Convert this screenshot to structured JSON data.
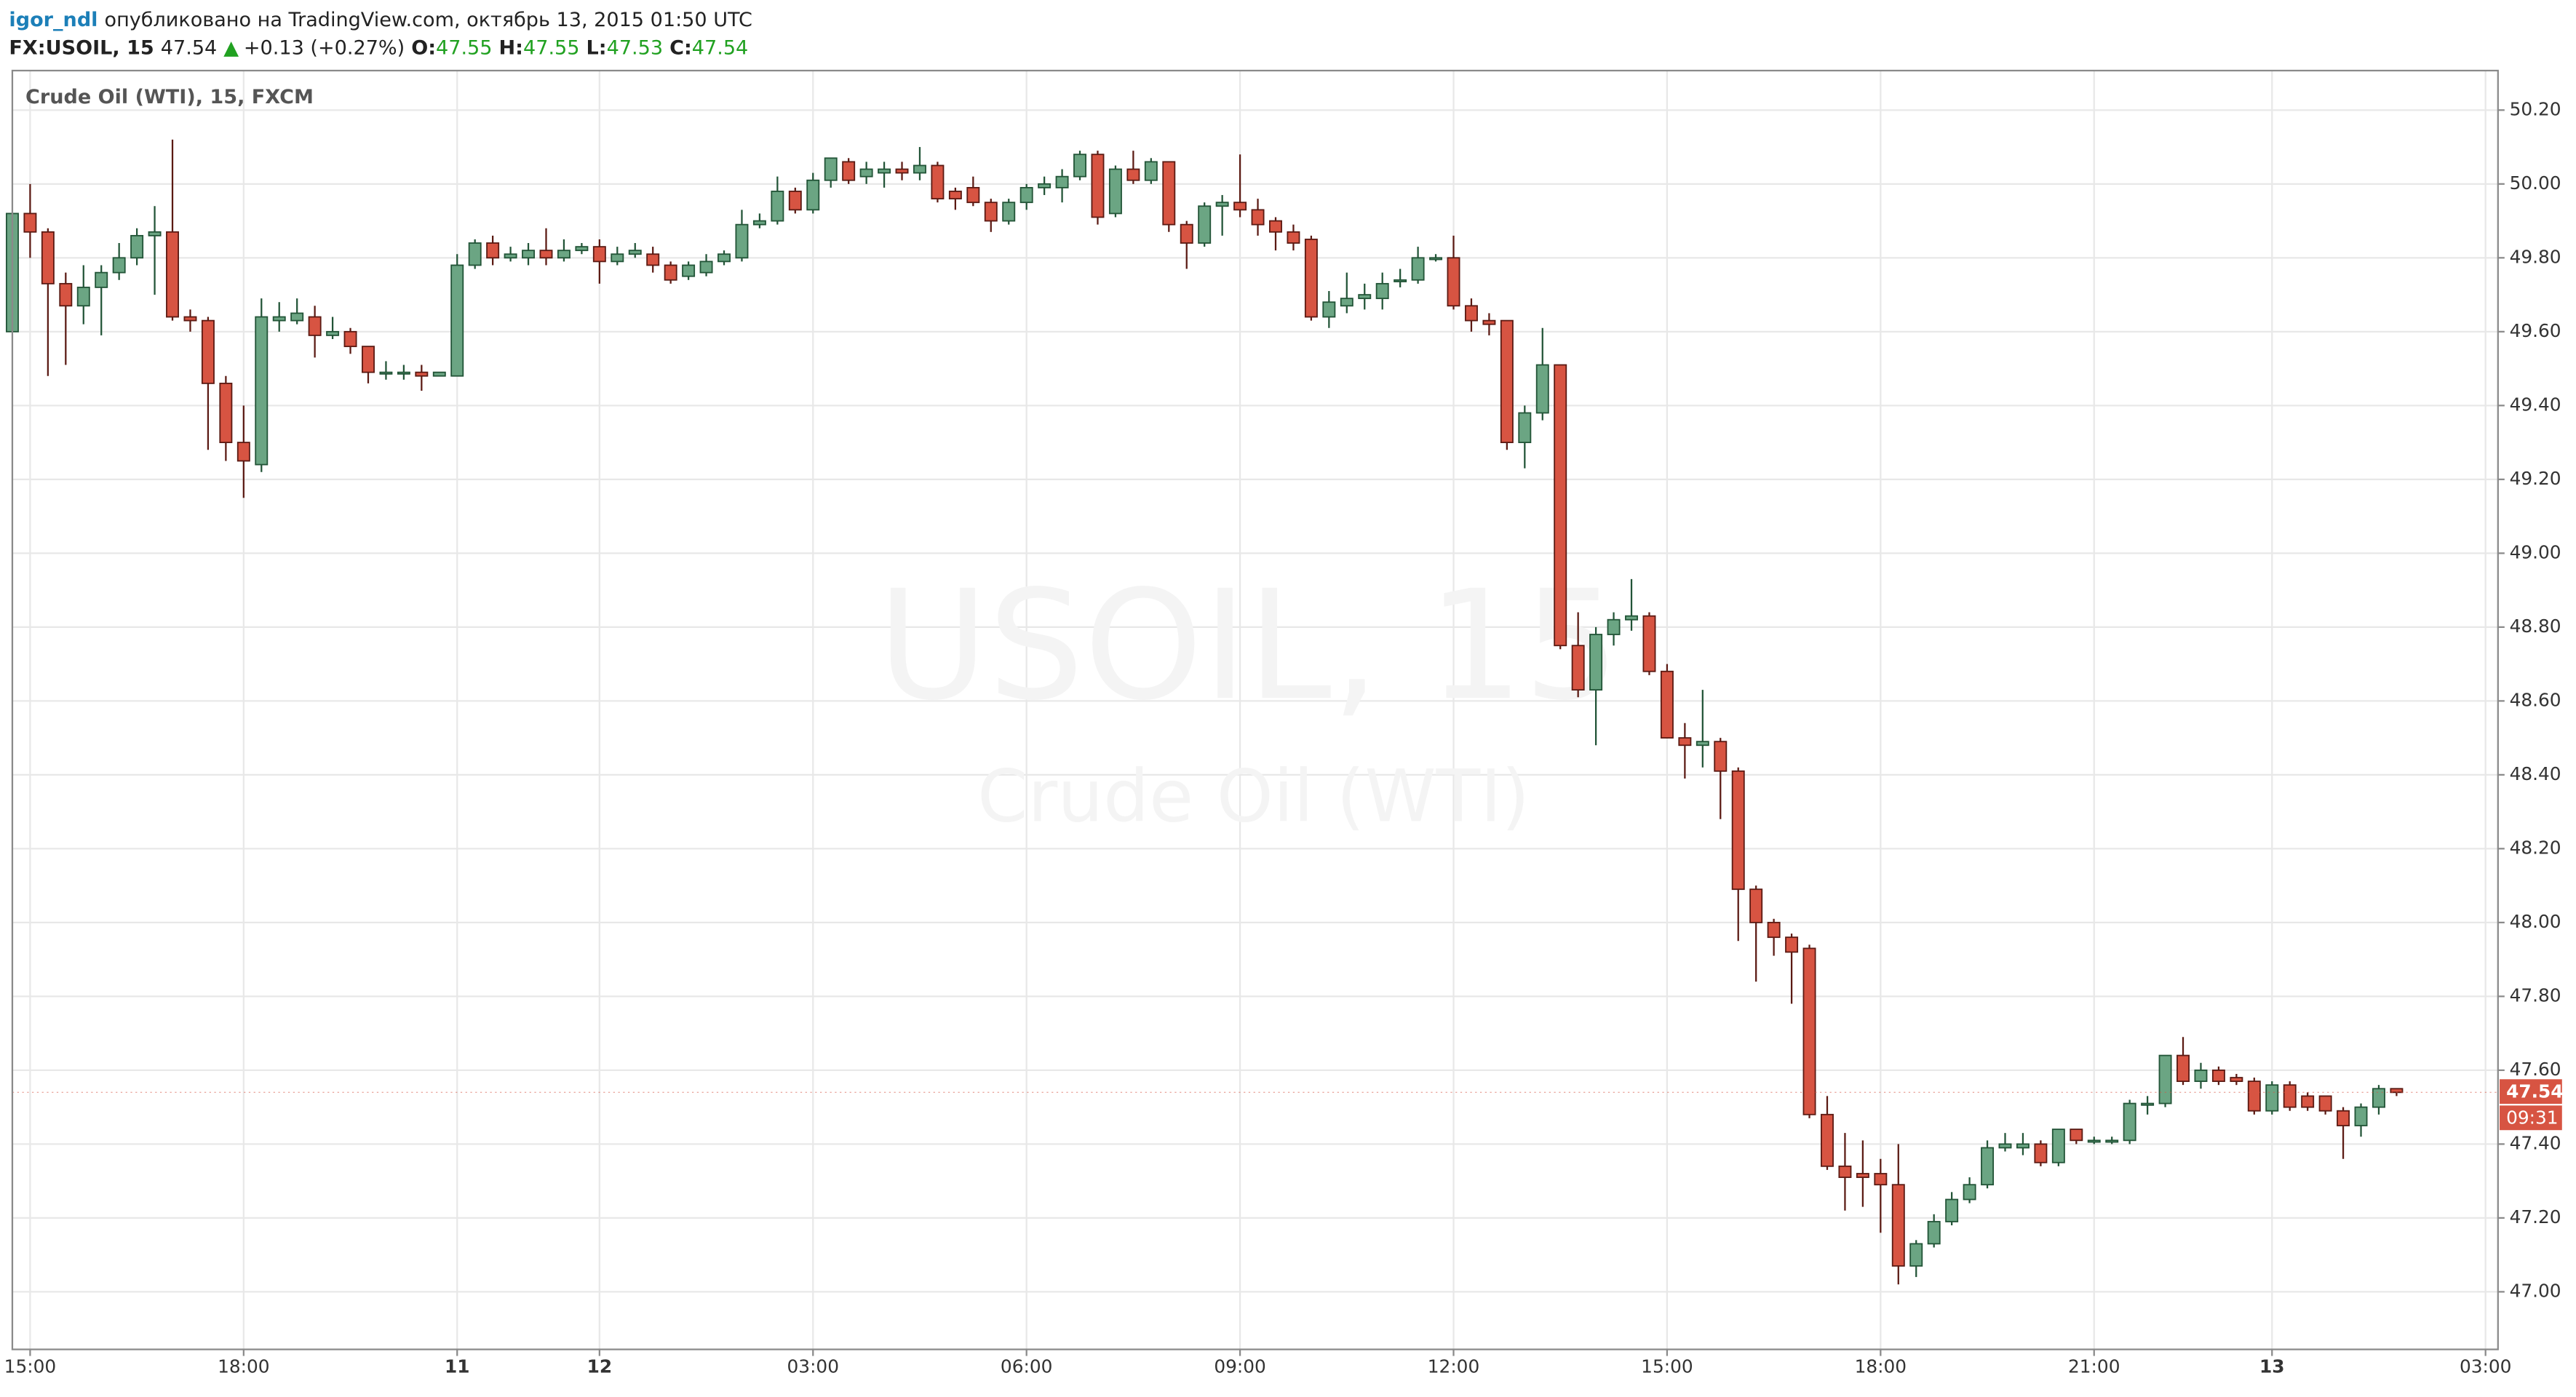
{
  "header": {
    "author": "igor_ndl",
    "published": "опубликовано на TradingView.com, октябрь 13, 2015 01:50 UTC",
    "symbol": "FX:USOIL, 15",
    "last": "47.54",
    "arrow": "▲",
    "change": "+0.13 (+0.27%)",
    "o_label": "O:",
    "o": "47.55",
    "h_label": "H:",
    "h": "47.55",
    "l_label": "L:",
    "l": "47.53",
    "c_label": "C:",
    "c": "47.54"
  },
  "chart_data": {
    "type": "candlestick",
    "legend": "Crude Oil (WTI), 15, FXCM",
    "watermark": "USOIL, 15",
    "watermark_subtitle": "Crude Oil (WTI)",
    "up_color": "#6ba583",
    "up_border": "#225437",
    "down_color": "#d75442",
    "down_border": "#5b1a13",
    "grid": true,
    "last_price": 47.54,
    "countdown": "09:31",
    "xlim": [
      0,
      139.7
    ],
    "xticks": [
      {
        "value": 1,
        "label": "15:00"
      },
      {
        "value": 13,
        "label": "18:00"
      },
      {
        "value": 25,
        "label": "11",
        "bold": true
      },
      {
        "value": 33,
        "label": "12",
        "bold": true
      },
      {
        "value": 45,
        "label": "03:00"
      },
      {
        "value": 57,
        "label": "06:00"
      },
      {
        "value": 69,
        "label": "09:00"
      },
      {
        "value": 81,
        "label": "12:00"
      },
      {
        "value": 93,
        "label": "15:00"
      },
      {
        "value": 105,
        "label": "18:00"
      },
      {
        "value": 117,
        "label": "21:00"
      },
      {
        "value": 127,
        "label": "13",
        "bold": true
      },
      {
        "value": 139,
        "label": "03:00"
      }
    ],
    "ylim": [
      46.844,
      50.307
    ],
    "yticks": [
      {
        "value": 47.0,
        "label": "47.00"
      },
      {
        "value": 47.2,
        "label": "47.20"
      },
      {
        "value": 47.4,
        "label": "47.40"
      },
      {
        "value": 47.6,
        "label": "47.60"
      },
      {
        "value": 47.8,
        "label": "47.80"
      },
      {
        "value": 48.0,
        "label": "48.00"
      },
      {
        "value": 48.2,
        "label": "48.20"
      },
      {
        "value": 48.4,
        "label": "48.40"
      },
      {
        "value": 48.6,
        "label": "48.60"
      },
      {
        "value": 48.8,
        "label": "48.80"
      },
      {
        "value": 49.0,
        "label": "49.00"
      },
      {
        "value": 49.2,
        "label": "49.20"
      },
      {
        "value": 49.4,
        "label": "49.40"
      },
      {
        "value": 49.6,
        "label": "49.60"
      },
      {
        "value": 49.8,
        "label": "49.80"
      },
      {
        "value": 50.0,
        "label": "50.00"
      },
      {
        "value": 50.2,
        "label": "50.20"
      }
    ],
    "open": [
      49.6,
      49.92,
      49.87,
      49.73,
      49.67,
      49.72,
      49.76,
      49.8,
      49.86,
      49.87,
      49.64,
      49.63,
      49.46,
      49.3,
      49.24,
      49.63,
      49.63,
      49.64,
      49.59,
      49.6,
      49.56,
      49.49,
      49.49,
      49.49,
      49.48,
      49.48,
      49.78,
      49.84,
      49.8,
      49.8,
      49.82,
      49.8,
      49.82,
      49.83,
      49.79,
      49.81,
      49.81,
      49.78,
      49.75,
      49.76,
      49.79,
      49.8,
      49.89,
      49.9,
      49.98,
      49.93,
      50.01,
      50.06,
      50.02,
      50.03,
      50.04,
      50.03,
      50.05,
      49.98,
      49.99,
      49.95,
      49.9,
      49.95,
      49.99,
      49.99,
      50.02,
      50.08,
      49.92,
      50.04,
      50.01,
      50.06,
      49.89,
      49.84,
      49.94,
      49.95,
      49.93,
      49.9,
      49.87,
      49.85,
      49.64,
      49.67,
      49.69,
      49.69,
      49.74,
      49.74,
      49.8,
      49.8,
      49.67,
      49.63,
      49.63,
      49.3,
      49.38,
      49.51,
      48.75,
      48.63,
      48.78,
      48.82,
      48.83,
      48.68,
      48.5,
      48.48,
      48.49,
      48.41,
      48.09,
      48.0,
      47.96,
      47.93,
      47.48,
      47.34,
      47.32,
      47.32,
      47.29,
      47.07,
      47.13,
      47.19,
      47.25,
      47.29,
      47.39,
      47.39,
      47.4,
      47.35,
      47.44,
      47.41,
      47.41,
      47.41,
      47.51,
      47.51,
      47.64,
      47.57,
      47.6,
      47.58,
      47.57,
      47.49,
      47.56,
      47.53,
      47.53,
      47.49,
      47.45,
      47.5,
      47.55
    ],
    "high": [
      49.92,
      50.0,
      49.88,
      49.76,
      49.78,
      49.78,
      49.84,
      49.88,
      49.94,
      50.12,
      49.66,
      49.64,
      49.48,
      49.4,
      49.69,
      49.68,
      49.69,
      49.67,
      49.64,
      49.61,
      49.56,
      49.52,
      49.51,
      49.51,
      49.49,
      49.81,
      49.85,
      49.86,
      49.83,
      49.84,
      49.88,
      49.85,
      49.84,
      49.85,
      49.83,
      49.84,
      49.83,
      49.79,
      49.79,
      49.81,
      49.82,
      49.93,
      49.92,
      50.02,
      49.99,
      50.03,
      50.07,
      50.07,
      50.06,
      50.06,
      50.06,
      50.1,
      50.06,
      49.99,
      50.02,
      49.96,
      49.96,
      50.0,
      50.02,
      50.04,
      50.09,
      50.09,
      50.05,
      50.09,
      50.07,
      50.06,
      49.9,
      49.95,
      49.97,
      50.08,
      49.96,
      49.91,
      49.89,
      49.86,
      49.71,
      49.76,
      49.73,
      49.76,
      49.77,
      49.83,
      49.81,
      49.86,
      49.69,
      49.65,
      49.63,
      49.4,
      49.61,
      49.51,
      48.84,
      48.8,
      48.84,
      48.93,
      48.84,
      48.7,
      48.54,
      48.63,
      48.5,
      48.42,
      48.1,
      48.01,
      47.97,
      47.94,
      47.53,
      47.43,
      47.41,
      47.36,
      47.4,
      47.14,
      47.21,
      47.27,
      47.31,
      47.41,
      47.43,
      47.43,
      47.41,
      47.44,
      47.44,
      47.42,
      47.42,
      47.52,
      47.53,
      47.64,
      47.69,
      47.62,
      47.61,
      47.59,
      47.58,
      47.57,
      47.57,
      47.54,
      47.53,
      47.5,
      47.51,
      47.56,
      47.55
    ],
    "low": [
      49.6,
      49.8,
      49.48,
      49.51,
      49.62,
      49.59,
      49.74,
      49.78,
      49.7,
      49.63,
      49.6,
      49.28,
      49.25,
      49.15,
      49.22,
      49.6,
      49.62,
      49.53,
      49.58,
      49.54,
      49.46,
      49.47,
      49.47,
      49.44,
      49.48,
      49.48,
      49.77,
      49.78,
      49.79,
      49.78,
      49.78,
      49.79,
      49.81,
      49.73,
      49.78,
      49.8,
      49.76,
      49.73,
      49.74,
      49.75,
      49.78,
      49.79,
      49.88,
      49.89,
      49.92,
      49.92,
      49.99,
      50.0,
      50.0,
      49.99,
      50.01,
      50.01,
      49.95,
      49.93,
      49.94,
      49.87,
      49.89,
      49.93,
      49.97,
      49.95,
      50.01,
      49.89,
      49.91,
      50.0,
      50.0,
      49.87,
      49.77,
      49.83,
      49.86,
      49.91,
      49.86,
      49.82,
      49.82,
      49.63,
      49.61,
      49.65,
      49.66,
      49.66,
      49.72,
      49.73,
      49.79,
      49.66,
      49.6,
      49.59,
      49.28,
      49.23,
      49.36,
      48.74,
      48.61,
      48.48,
      48.75,
      48.79,
      48.67,
      48.5,
      48.39,
      48.42,
      48.28,
      47.95,
      47.84,
      47.91,
      47.78,
      47.47,
      47.33,
      47.22,
      47.23,
      47.16,
      47.02,
      47.04,
      47.12,
      47.18,
      47.24,
      47.28,
      47.38,
      47.37,
      47.34,
      47.34,
      47.4,
      47.4,
      47.4,
      47.4,
      47.48,
      47.5,
      47.56,
      47.55,
      47.56,
      47.56,
      47.48,
      47.48,
      47.49,
      47.49,
      47.48,
      47.36,
      47.42,
      47.48,
      47.53
    ],
    "close": [
      49.92,
      49.87,
      49.73,
      49.67,
      49.72,
      49.76,
      49.8,
      49.86,
      49.87,
      49.64,
      49.63,
      49.46,
      49.3,
      49.25,
      49.64,
      49.64,
      49.65,
      49.59,
      49.6,
      49.56,
      49.49,
      49.49,
      49.49,
      49.48,
      49.49,
      49.78,
      49.84,
      49.8,
      49.81,
      49.82,
      49.8,
      49.82,
      49.83,
      49.79,
      49.81,
      49.82,
      49.78,
      49.74,
      49.78,
      49.79,
      49.81,
      49.89,
      49.9,
      49.98,
      49.93,
      50.01,
      50.07,
      50.01,
      50.04,
      50.04,
      50.03,
      50.05,
      49.96,
      49.96,
      49.95,
      49.9,
      49.95,
      49.99,
      50.0,
      50.02,
      50.08,
      49.91,
      50.04,
      50.01,
      50.06,
      49.89,
      49.84,
      49.94,
      49.95,
      49.93,
      49.89,
      49.87,
      49.84,
      49.64,
      49.68,
      49.69,
      49.7,
      49.73,
      49.74,
      49.8,
      49.8,
      49.67,
      49.63,
      49.62,
      49.3,
      49.38,
      49.51,
      48.75,
      48.63,
      48.78,
      48.82,
      48.83,
      48.68,
      48.5,
      48.48,
      48.49,
      48.41,
      48.09,
      48.0,
      47.96,
      47.92,
      47.48,
      47.34,
      47.31,
      47.31,
      47.29,
      47.07,
      47.13,
      47.19,
      47.25,
      47.29,
      47.39,
      47.4,
      47.4,
      47.35,
      47.44,
      47.41,
      47.41,
      47.41,
      47.51,
      47.51,
      47.64,
      47.57,
      47.6,
      47.57,
      47.57,
      47.49,
      47.56,
      47.5,
      47.5,
      47.49,
      47.45,
      47.5,
      47.55,
      47.54
    ]
  }
}
